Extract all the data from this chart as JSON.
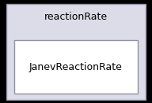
{
  "outer_box_facecolor": "#dcdce8",
  "outer_box_edgecolor": "#9090a8",
  "inner_box_facecolor": "#ffffff",
  "inner_box_edgecolor": "#9090a8",
  "outer_label": "reactionRate",
  "inner_label": "JanevReactionRate",
  "outer_label_fontsize": 9,
  "inner_label_fontsize": 9,
  "background_color": "#000000",
  "fig_width": 1.92,
  "fig_height": 1.31,
  "dpi": 100
}
